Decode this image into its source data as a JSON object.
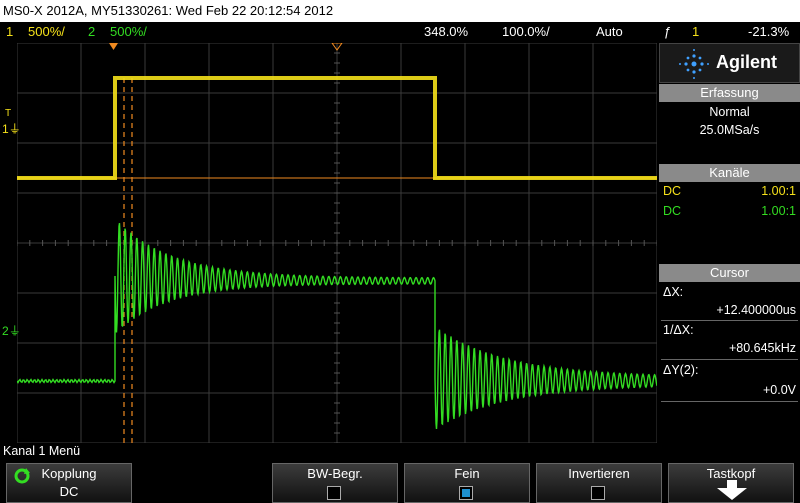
{
  "header": {
    "title": "MS0-X 2012A, MY51330261: Wed Feb 22 20:12:54 2012"
  },
  "status": {
    "ch1_num": "1",
    "ch1_scale": "500&#x2009;/",
    "ch1_scale_text": "500%/",
    "ch2_num": "2",
    "ch2_scale_text": "500%/",
    "time_delay": "348.0%",
    "time_scale": "100.0%/",
    "trigger_mode": "Auto",
    "trigger_source": "1",
    "trigger_level": "-21.3%"
  },
  "panel": {
    "brand": "Agilent",
    "acq_header": "Erfassung",
    "acq_mode": "Normal",
    "acq_rate": "25.0MSa/s",
    "channels_header": "Kanäle",
    "ch1_coupling": "DC",
    "ch1_probe": "1.00:1",
    "ch2_coupling": "DC",
    "ch2_probe": "1.00:1",
    "cursor_header": "Cursor",
    "dx_label": "ΔX:",
    "dx_value": "+12.400000us",
    "inv_dx_label": "1/ΔX:",
    "inv_dx_value": "+80.645kHz",
    "dy_label": "ΔY(2):",
    "dy_value": "+0.0V"
  },
  "menu_title": "Kanal 1 Menü",
  "softkeys": [
    {
      "label": "Kopplung",
      "value": "DC"
    },
    {
      "label": "BW-Begr.",
      "value": ""
    },
    {
      "label": "Fein",
      "value": ""
    },
    {
      "label": "Invertieren",
      "value": ""
    },
    {
      "label": "Tastkopf",
      "value": ""
    }
  ],
  "markers": {
    "ch1": "1",
    "ch2": "2",
    "trigger": "T"
  },
  "colors": {
    "ch1": "#f5e11a",
    "ch2": "#33dd22",
    "cursor": "#f08a20",
    "grid": "#3a3a3a"
  }
}
